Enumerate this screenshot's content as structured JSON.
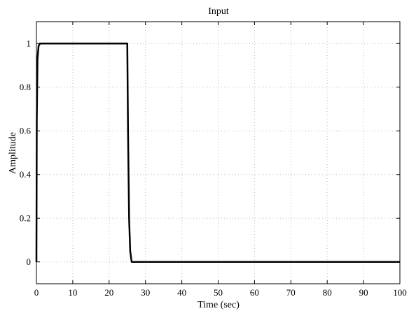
{
  "chart_data": {
    "type": "line",
    "title": "Input",
    "xlabel": "Time (sec)",
    "ylabel": "Amplitude",
    "xlim": [
      0,
      100
    ],
    "ylim": [
      -0.1,
      1.1
    ],
    "xticks": [
      0,
      10,
      20,
      30,
      40,
      50,
      60,
      70,
      80,
      90,
      100
    ],
    "yticks": [
      0,
      0.2,
      0.4,
      0.6,
      0.8,
      1
    ],
    "xtick_labels": [
      "0",
      "10",
      "20",
      "30",
      "40",
      "50",
      "60",
      "70",
      "80",
      "90",
      "100"
    ],
    "ytick_labels": [
      "0",
      "0.2",
      "0.4",
      "0.6",
      "0.8",
      "1"
    ],
    "grid": true,
    "series": [
      {
        "color": "#000000",
        "x": [
          0,
          0.1,
          0.3,
          0.6,
          1,
          25,
          25.2,
          25.5,
          25.8,
          26.2,
          100
        ],
        "y": [
          0,
          0.65,
          0.93,
          0.99,
          1,
          1,
          0.6,
          0.2,
          0.05,
          0,
          0
        ]
      }
    ]
  }
}
